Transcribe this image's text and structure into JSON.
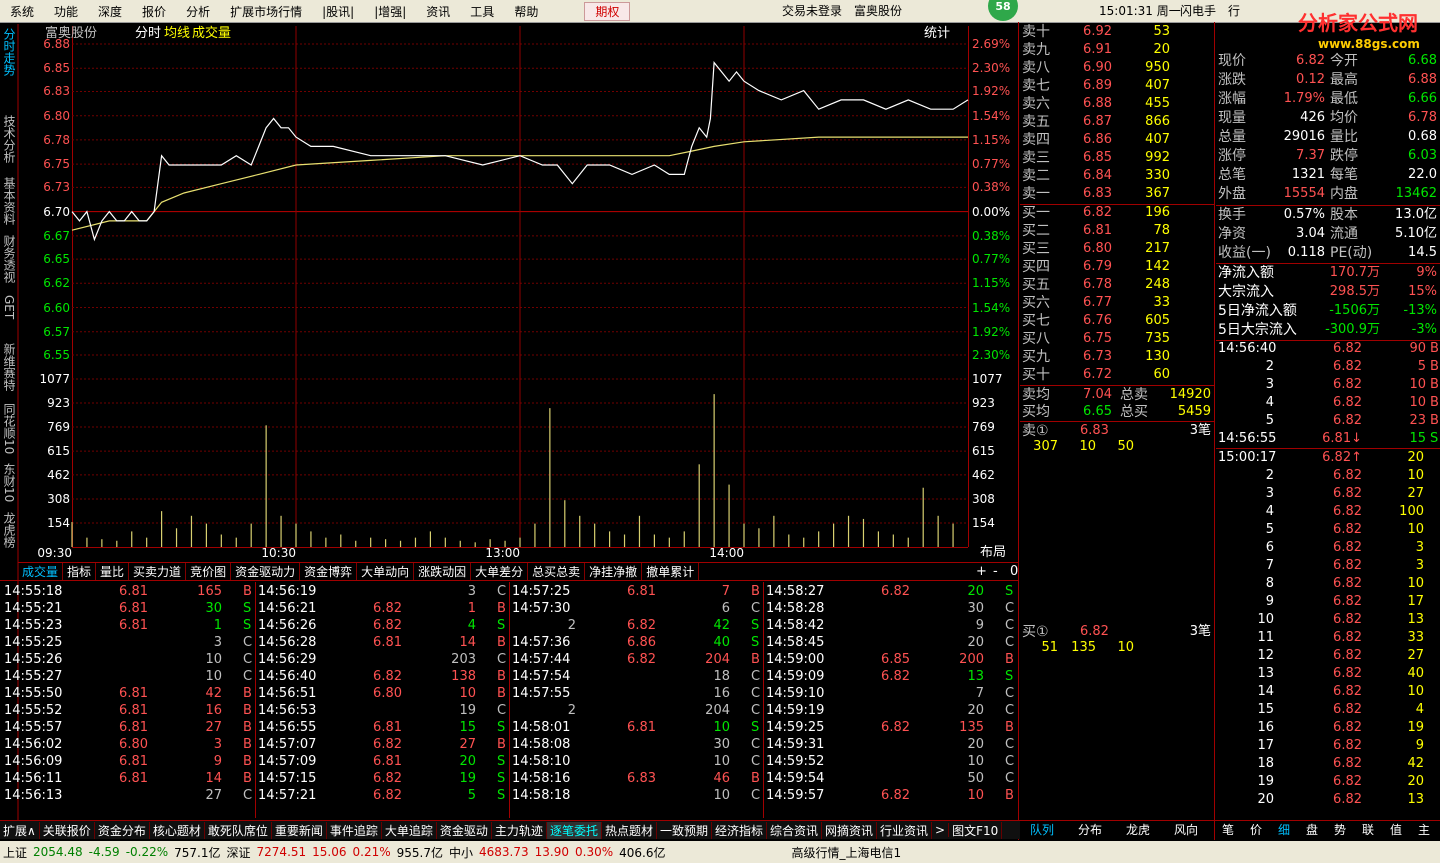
{
  "menu": {
    "items": [
      "系统",
      "功能",
      "深度",
      "报价",
      "分析",
      "扩展市场行情",
      "|股讯|",
      "|增强|",
      "资讯",
      "工具",
      "帮助",
      "期权"
    ],
    "login": "交易未登录",
    "stock": "富奥股份",
    "badge": "58",
    "clock": "15:01:31 周一",
    "buttons": [
      "闪电手",
      "行"
    ]
  },
  "watermark": {
    "title": "分析家公式网",
    "url": "www.88gs.com"
  },
  "side_tabs": [
    "分时走势",
    "技术分析",
    "基本资料",
    "财务透视",
    "GET",
    "新维赛特",
    "同花顺10",
    "东财10",
    "龙虎榜"
  ],
  "chart": {
    "type": "line",
    "stock": "富奥股份",
    "tabs": [
      "分时",
      "均线",
      "成交量"
    ],
    "stat": "统计",
    "layout": "布局",
    "xlim": [
      0,
      240
    ],
    "xticks": [
      {
        "value": 0,
        "label": "09:30"
      },
      {
        "value": 60,
        "label": "10:30"
      },
      {
        "value": 120,
        "label": "13:00"
      },
      {
        "value": 180,
        "label": "14:00"
      }
    ],
    "ylim": [
      6.546,
      6.88
    ],
    "yticks": [
      {
        "value": 6.88,
        "label": "6.88"
      },
      {
        "value": 6.854,
        "label": "6.85"
      },
      {
        "value": 6.829,
        "label": "6.83"
      },
      {
        "value": 6.803,
        "label": "6.80"
      },
      {
        "value": 6.777,
        "label": "6.78"
      },
      {
        "value": 6.751,
        "label": "6.75"
      },
      {
        "value": 6.726,
        "label": "6.73"
      },
      {
        "value": 6.7,
        "label": "6.70"
      },
      {
        "value": 6.674,
        "label": "6.67"
      },
      {
        "value": 6.649,
        "label": "6.65"
      },
      {
        "value": 6.623,
        "label": "6.62"
      },
      {
        "value": 6.597,
        "label": "6.60"
      },
      {
        "value": 6.571,
        "label": "6.57"
      },
      {
        "value": 6.546,
        "label": "6.55"
      }
    ],
    "pct_labels": [
      "2.69%",
      "2.30%",
      "1.92%",
      "1.54%",
      "1.15%",
      "0.77%",
      "0.38%",
      "0.00%",
      "0.38%",
      "0.77%",
      "1.15%",
      "1.54%",
      "1.92%",
      "2.30%"
    ],
    "price": {
      "color": "#ffffff",
      "x": [
        0,
        2,
        4,
        6,
        8,
        10,
        12,
        14,
        16,
        18,
        20,
        22,
        24,
        26,
        28,
        32,
        36,
        40,
        44,
        48,
        50,
        52,
        54,
        56,
        58,
        60,
        64,
        70,
        80,
        90,
        100,
        110,
        120,
        126,
        130,
        134,
        138,
        144,
        150,
        156,
        160,
        164,
        166,
        168,
        170,
        171,
        172,
        174,
        176,
        178,
        180,
        184,
        190,
        196,
        200,
        206,
        212,
        218,
        224,
        230,
        236,
        240
      ],
      "values": [
        6.7,
        6.69,
        6.7,
        6.67,
        6.69,
        6.7,
        6.69,
        6.69,
        6.7,
        6.69,
        6.69,
        6.7,
        6.76,
        6.75,
        6.75,
        6.75,
        6.75,
        6.75,
        6.76,
        6.75,
        6.77,
        6.79,
        6.8,
        6.79,
        6.79,
        6.78,
        6.77,
        6.77,
        6.76,
        6.76,
        6.76,
        6.75,
        6.76,
        6.75,
        6.75,
        6.73,
        6.75,
        6.75,
        6.74,
        6.75,
        6.74,
        6.74,
        6.77,
        6.79,
        6.78,
        6.8,
        6.86,
        6.85,
        6.84,
        6.85,
        6.84,
        6.83,
        6.82,
        6.83,
        6.81,
        6.82,
        6.82,
        6.81,
        6.82,
        6.81,
        6.81,
        6.82
      ]
    },
    "avg": {
      "color": "#e8e070",
      "x": [
        0,
        10,
        20,
        24,
        30,
        40,
        50,
        60,
        80,
        100,
        130,
        160,
        166,
        172,
        180,
        200,
        220,
        240
      ],
      "values": [
        6.68,
        6.69,
        6.69,
        6.71,
        6.72,
        6.73,
        6.74,
        6.75,
        6.755,
        6.76,
        6.76,
        6.76,
        6.765,
        6.77,
        6.775,
        6.78,
        6.78,
        6.78
      ]
    },
    "volume": {
      "color": "#d8d070",
      "ylim": [
        0,
        1077
      ],
      "yticks": [
        154,
        308,
        462,
        615,
        769,
        923,
        1077
      ],
      "x": [
        0,
        4,
        8,
        12,
        16,
        20,
        24,
        28,
        32,
        36,
        40,
        44,
        48,
        52,
        56,
        60,
        64,
        68,
        72,
        76,
        80,
        84,
        88,
        92,
        96,
        100,
        104,
        108,
        112,
        116,
        120,
        124,
        128,
        132,
        136,
        140,
        144,
        148,
        152,
        156,
        160,
        164,
        168,
        172,
        176,
        180,
        184,
        188,
        192,
        196,
        200,
        204,
        208,
        212,
        216,
        220,
        224,
        228,
        232,
        236
      ],
      "values": [
        160,
        60,
        50,
        40,
        100,
        60,
        230,
        120,
        200,
        150,
        80,
        60,
        150,
        780,
        200,
        150,
        100,
        60,
        80,
        40,
        60,
        50,
        40,
        60,
        100,
        60,
        40,
        30,
        50,
        40,
        60,
        150,
        890,
        300,
        200,
        150,
        100,
        80,
        200,
        80,
        60,
        100,
        530,
        980,
        400,
        150,
        120,
        200,
        80,
        60,
        100,
        150,
        200,
        180,
        100,
        80,
        60,
        380,
        200,
        150
      ]
    }
  },
  "chart_tabs": [
    "成交量",
    "指标",
    "量比",
    "买卖力道",
    "竞价图",
    "资金驱动力",
    "资金博弈",
    "大单动向",
    "涨跌动因",
    "大单差分",
    "总买总卖",
    "净挂净撤",
    "撤单累计"
  ],
  "chart_buttons": [
    "+",
    "-",
    "0"
  ],
  "order_book": {
    "sell": [
      [
        "卖十",
        "6.92",
        "53"
      ],
      [
        "卖九",
        "6.91",
        "20"
      ],
      [
        "卖八",
        "6.90",
        "950"
      ],
      [
        "卖七",
        "6.89",
        "407"
      ],
      [
        "卖六",
        "6.88",
        "455"
      ],
      [
        "卖五",
        "6.87",
        "866"
      ],
      [
        "卖四",
        "6.86",
        "407"
      ],
      [
        "卖三",
        "6.85",
        "992"
      ],
      [
        "卖二",
        "6.84",
        "330"
      ],
      [
        "卖一",
        "6.83",
        "367"
      ]
    ],
    "buy": [
      [
        "买一",
        "6.82",
        "196"
      ],
      [
        "买二",
        "6.81",
        "78"
      ],
      [
        "买三",
        "6.80",
        "217"
      ],
      [
        "买四",
        "6.79",
        "142"
      ],
      [
        "买五",
        "6.78",
        "248"
      ],
      [
        "买六",
        "6.77",
        "33"
      ],
      [
        "买七",
        "6.76",
        "605"
      ],
      [
        "买八",
        "6.75",
        "735"
      ],
      [
        "买九",
        "6.73",
        "130"
      ],
      [
        "买十",
        "6.72",
        "60"
      ]
    ],
    "summary": [
      [
        "卖均",
        "7.04",
        "总卖",
        "14920"
      ],
      [
        "买均",
        "6.65",
        "总买",
        "5459"
      ]
    ],
    "sell_queue": {
      "label": "卖①",
      "price": "6.83",
      "count": "3笔",
      "orders": [
        "307",
        "10",
        "50"
      ]
    },
    "buy_queue": {
      "label": "买①",
      "price": "6.82",
      "count": "3笔",
      "orders": [
        "51",
        "135",
        "10"
      ]
    }
  },
  "quote": [
    [
      "现价",
      "6.82",
      "今开",
      "6.68"
    ],
    [
      "涨跌",
      "0.12",
      "最高",
      "6.88"
    ],
    [
      "涨幅",
      "1.79%",
      "最低",
      "6.66"
    ],
    [
      "现量",
      "426",
      "均价",
      "6.78"
    ],
    [
      "总量",
      "29016",
      "量比",
      "0.68"
    ],
    [
      "涨停",
      "7.37",
      "跌停",
      "6.03"
    ],
    [
      "总笔",
      "1321",
      "每笔",
      "22.0"
    ],
    [
      "外盘",
      "15554",
      "内盘",
      "13462"
    ],
    [
      "换手",
      "0.57%",
      "股本",
      "13.0亿"
    ],
    [
      "净资",
      "3.04",
      "流通",
      "5.10亿"
    ],
    [
      "收益(一)",
      "0.118",
      "PE(动)",
      "14.5"
    ]
  ],
  "flows": [
    [
      "净流入额",
      "170.7万",
      "9%"
    ],
    [
      "大宗流入",
      "298.5万",
      "15%"
    ],
    [
      "5日净流入额",
      "-1506万",
      "-13%"
    ],
    [
      "5日大宗流入",
      "-300.9万",
      "-3%"
    ]
  ],
  "ticks": [
    [
      "14:56:40",
      "6.82",
      "90",
      "B"
    ],
    [
      "2",
      "6.82",
      "5",
      "B"
    ],
    [
      "3",
      "6.82",
      "10",
      "B"
    ],
    [
      "4",
      "6.82",
      "10",
      "B"
    ],
    [
      "5",
      "6.82",
      "23",
      "B"
    ],
    [
      "14:56:55",
      "6.81↓",
      "15",
      "S"
    ],
    [
      "15:00:17",
      "6.82↑",
      "20"
    ],
    [
      "2",
      "6.82",
      "10"
    ],
    [
      "3",
      "6.82",
      "27"
    ],
    [
      "4",
      "6.82",
      "100"
    ],
    [
      "5",
      "6.82",
      "10"
    ],
    [
      "6",
      "6.82",
      "3"
    ],
    [
      "7",
      "6.82",
      "3"
    ],
    [
      "8",
      "6.82",
      "10"
    ],
    [
      "9",
      "6.82",
      "17"
    ],
    [
      "10",
      "6.82",
      "13"
    ],
    [
      "11",
      "6.82",
      "33"
    ],
    [
      "12",
      "6.82",
      "27"
    ],
    [
      "13",
      "6.82",
      "40"
    ],
    [
      "14",
      "6.82",
      "10"
    ],
    [
      "15",
      "6.82",
      "4"
    ],
    [
      "16",
      "6.82",
      "19"
    ],
    [
      "17",
      "6.82",
      "9"
    ],
    [
      "18",
      "6.82",
      "42"
    ],
    [
      "19",
      "6.82",
      "20"
    ],
    [
      "20",
      "6.82",
      "13"
    ]
  ],
  "trades": [
    [
      [
        "14:55:18",
        "6.81",
        "165",
        "B"
      ],
      [
        "14:55:21",
        "6.81",
        "30",
        "S"
      ],
      [
        "14:55:23",
        "6.81",
        "1",
        "S"
      ],
      [
        "14:55:25",
        null,
        "3",
        "C"
      ],
      [
        "14:55:26",
        null,
        "10",
        "C"
      ],
      [
        "14:55:27",
        null,
        "10",
        "C"
      ],
      [
        "14:55:50",
        "6.81",
        "42",
        "B"
      ],
      [
        "14:55:52",
        "6.81",
        "16",
        "B"
      ],
      [
        "14:55:57",
        "6.81",
        "27",
        "B"
      ],
      [
        "14:56:02",
        "6.80",
        "3",
        "B"
      ],
      [
        "14:56:09",
        "6.81",
        "9",
        "B"
      ],
      [
        "14:56:11",
        "6.81",
        "14",
        "B"
      ],
      [
        "14:56:13",
        null,
        "27",
        "C"
      ]
    ],
    [
      [
        "14:56:19",
        null,
        "3",
        "C"
      ],
      [
        "14:56:21",
        "6.82",
        "1",
        "B"
      ],
      [
        "14:56:26",
        "6.82",
        "4",
        "S"
      ],
      [
        "14:56:28",
        "6.81",
        "14",
        "B"
      ],
      [
        "14:56:29",
        null,
        "203",
        "C"
      ],
      [
        "14:56:40",
        "6.82",
        "138",
        "B"
      ],
      [
        "14:56:51",
        "6.80",
        "10",
        "B"
      ],
      [
        "14:56:53",
        null,
        "19",
        "C"
      ],
      [
        "14:56:55",
        "6.81",
        "15",
        "S"
      ],
      [
        "14:57:07",
        "6.82",
        "27",
        "B"
      ],
      [
        "14:57:09",
        "6.81",
        "20",
        "S"
      ],
      [
        "14:57:15",
        "6.82",
        "19",
        "S"
      ],
      [
        "14:57:21",
        "6.82",
        "5",
        "S"
      ]
    ],
    [
      [
        "14:57:25",
        "6.81",
        "7",
        "B"
      ],
      [
        "14:57:30",
        null,
        "6",
        "C"
      ],
      [
        "2",
        "6.82",
        "42",
        "S"
      ],
      [
        "14:57:36",
        "6.86",
        "40",
        "S"
      ],
      [
        "14:57:44",
        "6.82",
        "204",
        "B"
      ],
      [
        "14:57:54",
        null,
        "18",
        "C"
      ],
      [
        "14:57:55",
        null,
        "16",
        "C"
      ],
      [
        "2",
        null,
        "204",
        "C"
      ],
      [
        "14:58:01",
        "6.81",
        "10",
        "S"
      ],
      [
        "14:58:08",
        null,
        "30",
        "C"
      ],
      [
        "14:58:10",
        null,
        "10",
        "C"
      ],
      [
        "14:58:16",
        "6.83",
        "46",
        "B"
      ],
      [
        "14:58:18",
        null,
        "10",
        "C"
      ]
    ],
    [
      [
        "14:58:27",
        "6.82",
        "20",
        "S"
      ],
      [
        "14:58:28",
        null,
        "30",
        "C"
      ],
      [
        "14:58:42",
        null,
        "9",
        "C"
      ],
      [
        "14:58:45",
        null,
        "20",
        "C"
      ],
      [
        "14:59:00",
        "6.85",
        "200",
        "B"
      ],
      [
        "14:59:09",
        "6.82",
        "13",
        "S"
      ],
      [
        "14:59:10",
        null,
        "7",
        "C"
      ],
      [
        "14:59:19",
        null,
        "20",
        "C"
      ],
      [
        "14:59:25",
        "6.82",
        "135",
        "B"
      ],
      [
        "14:59:31",
        null,
        "20",
        "C"
      ],
      [
        "14:59:52",
        null,
        "10",
        "C"
      ],
      [
        "14:59:54",
        null,
        "50",
        "C"
      ],
      [
        "14:59:57",
        "6.82",
        "10",
        "B"
      ]
    ]
  ],
  "bottom_tabs": [
    "扩展∧",
    "关联报价",
    "资金分布",
    "核心题材",
    "敢死队席位",
    "重要新闻",
    "事件追踪",
    "大单追踪",
    "资金驱动",
    "主力轨迹",
    "逐笔委托",
    "热点题材",
    "一致预期",
    "经济指标",
    "综合资讯",
    "网摘资讯",
    "行业资讯",
    ">",
    "图文F10"
  ],
  "book_tabs": [
    "队列",
    "分布",
    "龙虎",
    "风向"
  ],
  "detail_tabs": [
    "笔",
    "价",
    "细",
    "盘",
    "势",
    "联",
    "值",
    "主"
  ],
  "status": {
    "items": [
      "上证",
      "2054.48",
      "-4.59",
      "-0.22%",
      "757.1亿",
      "深证",
      "7274.51",
      "15.06",
      "0.21%",
      "955.7亿",
      "中小",
      "4683.73",
      "13.90",
      "0.30%",
      "406.6亿"
    ],
    "feed": "高级行情_上海电信1"
  }
}
